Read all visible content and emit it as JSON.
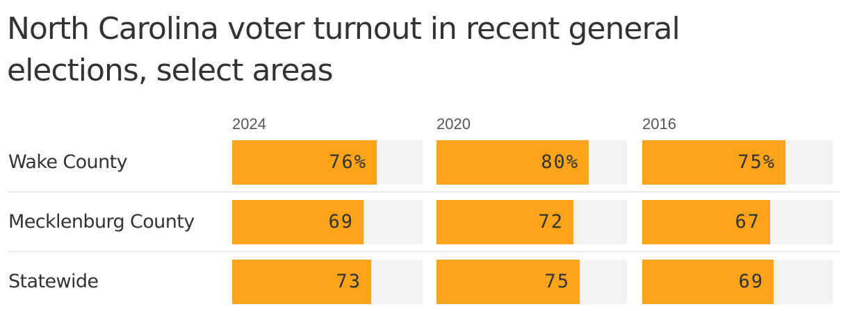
{
  "title": "North Carolina voter turnout in recent general elections, select areas",
  "colors": {
    "bar": "#fda41b",
    "track": "#f3f3f3",
    "text": "#333333",
    "header_text": "#555555",
    "divider": "#dedede"
  },
  "chart_data": {
    "type": "bar",
    "orientation": "horizontal",
    "title": "North Carolina voter turnout in recent general elections, select areas",
    "unit": "%",
    "xlim": [
      0,
      100
    ],
    "grid": false,
    "categories": [
      "Wake County",
      "Mecklenburg County",
      "Statewide"
    ],
    "series": [
      {
        "name": "2024",
        "values": [
          76,
          69,
          73
        ],
        "labels": [
          "76%",
          "69",
          "73"
        ]
      },
      {
        "name": "2020",
        "values": [
          80,
          72,
          75
        ],
        "labels": [
          "80%",
          "72",
          "75"
        ]
      },
      {
        "name": "2016",
        "values": [
          75,
          67,
          69
        ],
        "labels": [
          "75%",
          "67",
          "69"
        ]
      }
    ]
  }
}
